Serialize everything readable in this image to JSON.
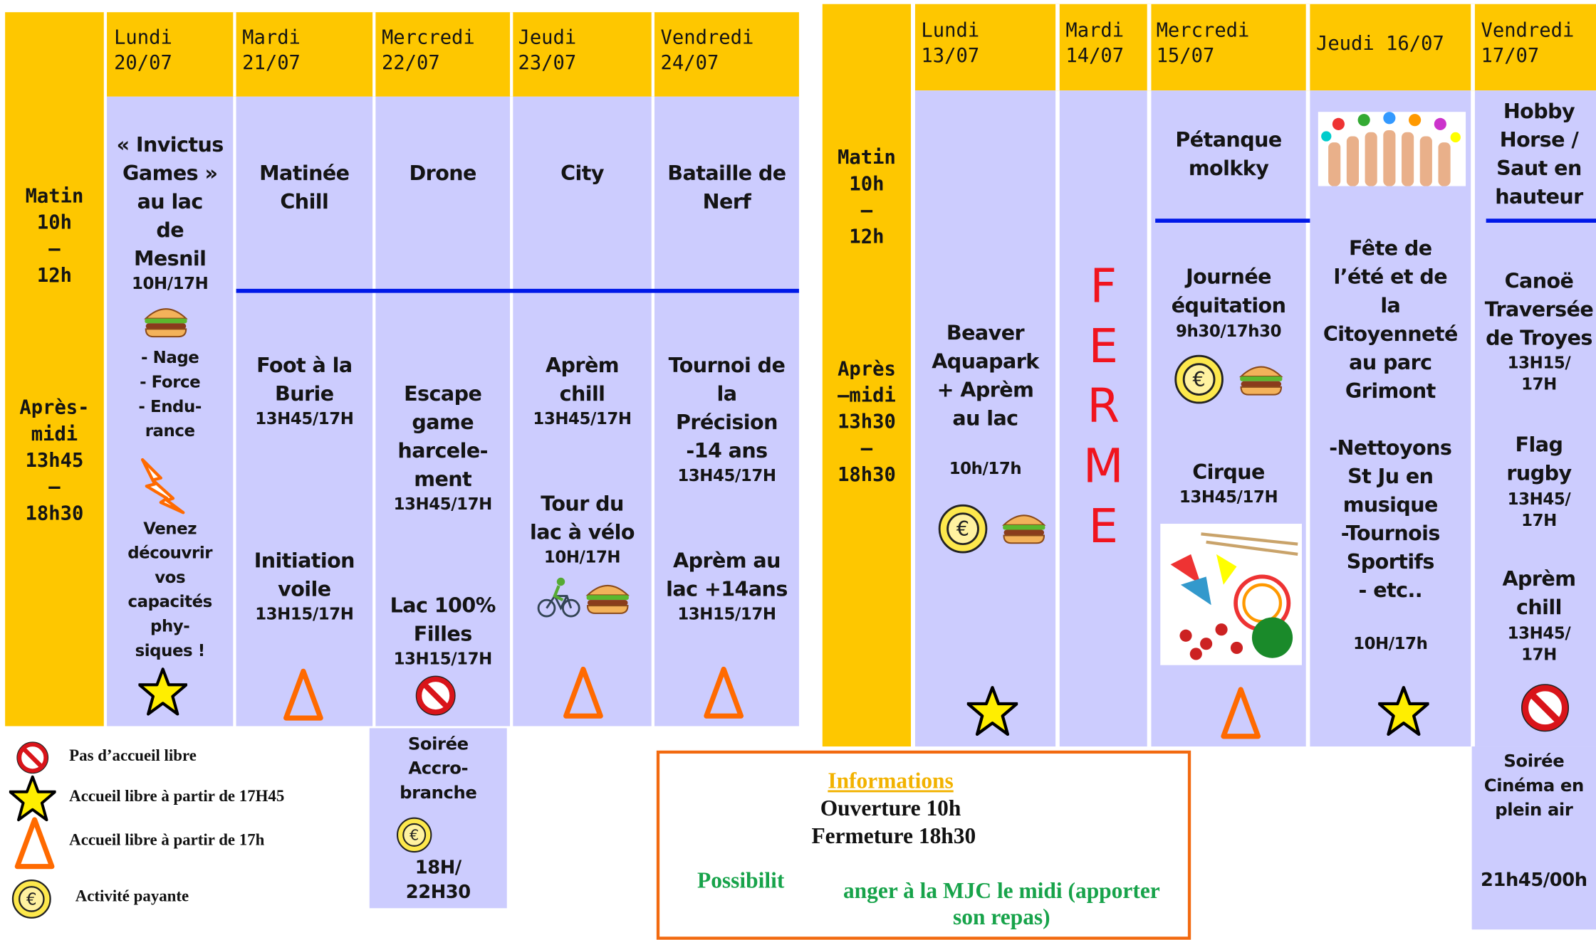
{
  "left_week": {
    "slot_morning": "Matin\n10h\n–\n12h",
    "slot_afternoon": "Après-\nmidi\n13h45\n–\n18h30",
    "days": [
      "Lundi\n20/07",
      "Mardi\n21/07",
      "Mercredi\n22/07",
      "Jeudi\n23/07",
      "Vendredi\n24/07"
    ],
    "lundi": {
      "title": "« Invictus\nGames »\nau lac\nde\nMesnil",
      "time": "10H/17H",
      "list": "- Nage\n- Force\n- Endu-\nrance",
      "note": "Venez\ndécouvrir\nvos\ncapacités\nphy-\nsiques !"
    },
    "mardi": {
      "morning": "Matinée\nChill",
      "pm1": "Foot à la\nBurie",
      "pm1_time": "13H45/17H",
      "pm2": "Initiation\nvoile",
      "pm2_time": "13H15/17H"
    },
    "mercredi": {
      "morning": "Drone",
      "pm1": "Escape\ngame\nharcele-\nment",
      "pm1_time": "13H45/17H",
      "pm2": "Lac 100%\nFilles",
      "pm2_time": "13H15/17H"
    },
    "jeudi": {
      "morning": "City",
      "pm1": "Aprèm\nchill",
      "pm1_time": "13H45/17H",
      "pm2": "Tour du\nlac à vélo",
      "pm2_time": "10H/17H"
    },
    "vendredi": {
      "morning": "Bataille de\nNerf",
      "pm1": "Tournoi de\nla\nPrécision\n-14 ans",
      "pm1_time": "13H45/17H",
      "pm2": "Aprèm au\nlac +14ans",
      "pm2_time": "13H15/17H"
    },
    "evening": {
      "title": "Soirée\nAccro-\nbranche",
      "time": "18H/\n22H30"
    }
  },
  "right_week": {
    "slot_morning": "Matin\n10h\n–\n12h",
    "slot_afternoon": "Après\n–midi\n13h30\n–\n18h30",
    "days": [
      "Lundi\n13/07",
      "Mardi\n14/07",
      "Mercredi\n15/07",
      "Jeudi 16/07",
      "Vendredi\n17/07"
    ],
    "lundi": {
      "title": "Beaver\nAquapark\n+ Aprèm\nau lac",
      "time": "10h/17h"
    },
    "mardi": {
      "closed": "F\nE\nR\nM\nE"
    },
    "mercredi": {
      "morning": "Pétanque\nmolkky",
      "pm1": "Journée\néquitation",
      "pm1_time": "9h30/17h30",
      "pm2": "Cirque",
      "pm2_time": "13H45/17H"
    },
    "jeudi": {
      "title": "Fête de\nl’été et de\nla\nCitoyenneté\nau parc\nGrimont",
      "list": "-Nettoyons\nSt Ju en\nmusique\n-Tournois\nSportifs\n- etc..",
      "time": "10H/17h"
    },
    "vendredi": {
      "morning": "Hobby\nHorse /\nSaut en\nhauteur",
      "pm1": "Canoë\nTraversée\nde Troyes",
      "pm1_time": "13H15/\n17H",
      "pm2": "Flag\nrugby",
      "pm2_time": "13H45/\n17H",
      "pm3": "Aprèm\nchill",
      "pm3_time": "13H45/\n17H"
    },
    "evening": {
      "title": "Soirée\nCinéma en\nplein air",
      "time": "21h45/00h"
    }
  },
  "legend": [
    "Pas d’accueil libre",
    "Accueil libre à partir de 17H45",
    "Accueil libre à partir de 17h",
    "Activité payante"
  ],
  "info": {
    "title": "Informations",
    "opening": "Ouverture 10h",
    "closing": "Fermeture 18h30",
    "lunch_start": "Possibilit",
    "lunch_end": "anger à la MJC le midi (apporter\nson repas)"
  }
}
